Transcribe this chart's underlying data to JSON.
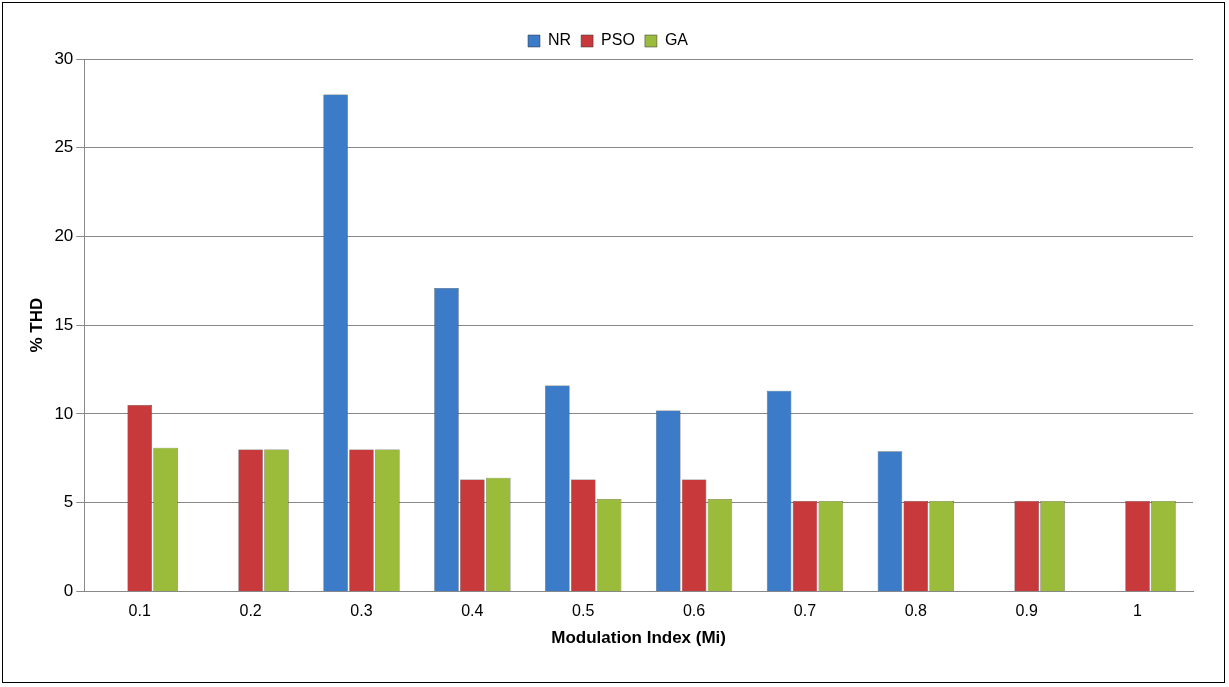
{
  "chart_data": {
    "type": "bar",
    "xlabel": "Modulation Index (Mi)",
    "ylabel": "% THD",
    "categories": [
      "0.1",
      "0.2",
      "0.3",
      "0.4",
      "0.5",
      "0.6",
      "0.7",
      "0.8",
      "0.9",
      "1"
    ],
    "series": [
      {
        "name": "NR",
        "color": "#3c7bc8",
        "values": [
          null,
          null,
          28,
          17.1,
          11.6,
          10.2,
          11.3,
          7.9,
          null,
          null
        ]
      },
      {
        "name": "PSO",
        "color": "#c8393b",
        "values": [
          10.5,
          8.0,
          8.0,
          6.3,
          6.3,
          6.3,
          5.1,
          5.1,
          5.1,
          5.1
        ]
      },
      {
        "name": "GA",
        "color": "#9bbb3b",
        "values": [
          8.1,
          8.0,
          8.0,
          6.4,
          5.2,
          5.2,
          5.1,
          5.1,
          5.1,
          5.1
        ]
      }
    ],
    "ylim": [
      0,
      30
    ],
    "yticks": [
      0,
      5,
      10,
      15,
      20,
      25,
      30
    ],
    "grid": "y",
    "legend": "top"
  }
}
